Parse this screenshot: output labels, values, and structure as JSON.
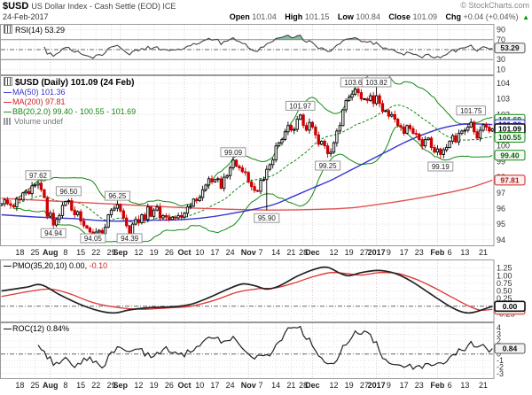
{
  "header": {
    "symbol": "$USD",
    "title": "US Dollar Index - Cash Settle (EOD) ICE",
    "copyright": "© StockCharts.com",
    "date": "24-Feb-2017",
    "quote": {
      "open_label": "Open",
      "open": "101.04",
      "high_label": "High",
      "high": "101.15",
      "low_label": "Low",
      "low": "100.84",
      "close_label": "Close",
      "close": "101.09",
      "chg_label": "Chg",
      "chg": "+0.04 (+0.04%)",
      "direction": "up",
      "arrow": "▲"
    }
  },
  "colors": {
    "up_candle": "#000000",
    "down_candle": "#cc0000",
    "ma50": "#3535d0",
    "ma200": "#e05252",
    "bb": "#128a12",
    "rsi_line": "#444444",
    "rsi_fill": "#2e8b57",
    "pmo_line": "#222222",
    "pmo_signal": "#e03333",
    "roc_line": "#222222",
    "grid": "#e9dcdc",
    "grid_bold": "#dcc8c8",
    "frame": "#999999"
  },
  "panels": {
    "rsi": {
      "legend": "RSI(14)",
      "value": "53.29",
      "yticks": [
        90,
        70,
        30,
        10
      ],
      "overbought": 70,
      "oversold": 30,
      "midline": 50,
      "box": {
        "text": "53.29",
        "v": 53.29,
        "style": "gray"
      }
    },
    "main": {
      "legend_title": "$USD (Daily) 101.09 (24 Feb)",
      "legend_ma50": "MA(50) 101.36",
      "legend_ma200": "MA(200) 97.81",
      "legend_bb": "BB(20,2.0) 99.40 - 100.55 - 101.69",
      "legend_volume": "Volume undef",
      "yticks": [
        104,
        103,
        102,
        101,
        100,
        99,
        98,
        97,
        96,
        95,
        94
      ],
      "axis_boxes": [
        {
          "text": "101.69",
          "v": 101.69,
          "style": "green"
        },
        {
          "text": "101.36",
          "v": 101.36,
          "style": "blue"
        },
        {
          "text": "101.09",
          "v": 101.09,
          "style": "dark"
        },
        {
          "text": "100.55",
          "v": 100.55,
          "style": "green"
        },
        {
          "text": "99.40",
          "v": 99.4,
          "style": "green"
        },
        {
          "text": "97.81",
          "v": 97.81,
          "style": "red"
        }
      ],
      "annotations": [
        {
          "text": "97.62",
          "i": 12,
          "v": 97.62,
          "side": "above"
        },
        {
          "text": "96.50",
          "i": 22,
          "v": 96.6,
          "side": "above"
        },
        {
          "text": "94.94",
          "i": 17,
          "v": 94.94,
          "side": "below"
        },
        {
          "text": "94.05",
          "i": 30,
          "v": 94.05,
          "side": "below"
        },
        {
          "text": "96.25",
          "i": 38,
          "v": 96.3,
          "side": "above"
        },
        {
          "text": "94.39",
          "i": 42,
          "v": 94.39,
          "side": "below"
        },
        {
          "text": "99.09",
          "i": 76,
          "v": 99.09,
          "side": "above"
        },
        {
          "text": "95.90",
          "i": 87,
          "v": 95.9,
          "side": "below"
        },
        {
          "text": "101.97",
          "i": 98,
          "v": 102.05,
          "side": "above"
        },
        {
          "text": "99.25",
          "i": 107,
          "v": 99.25,
          "side": "below"
        },
        {
          "text": "103.62",
          "i": 116,
          "v": 103.74,
          "side": "above"
        },
        {
          "text": "103.82",
          "i": 123,
          "v": 103.82,
          "side": "above"
        },
        {
          "text": "99.19",
          "i": 144,
          "v": 99.19,
          "side": "below"
        },
        {
          "text": "101.75",
          "i": 154,
          "v": 101.75,
          "side": "above"
        }
      ]
    },
    "pmo": {
      "legend": "PMO(35,20,10)",
      "value1": "0.00,",
      "value2": "-0.10",
      "yticks": [
        1.25,
        1.0,
        0.75,
        0.5,
        0.25,
        -0.25
      ],
      "boxes": [
        {
          "text": "-0.10",
          "v": -0.1,
          "style": "red"
        },
        {
          "text": "0.00",
          "v": 0.0,
          "style": "dark"
        }
      ]
    },
    "roc": {
      "legend": "ROC(12)",
      "value": "0.84%",
      "yticks": [
        4,
        3,
        2,
        1,
        0,
        -1,
        -2,
        -3
      ],
      "box": {
        "text": "0.84",
        "v": 0.84,
        "style": "gray"
      }
    }
  },
  "chart_data": {
    "type": "candlestick",
    "title": "$USD US Dollar Index - Cash Settle (EOD) ICE",
    "date_range": "Jul 2016 - 24 Feb 2017",
    "ylim_main": [
      93.65,
      104.45
    ],
    "x_ticks": [
      {
        "label": "18",
        "i": 6
      },
      {
        "label": "25",
        "i": 11
      },
      {
        "label": "Aug",
        "i": 16,
        "bold": true
      },
      {
        "label": "8",
        "i": 21
      },
      {
        "label": "15",
        "i": 26
      },
      {
        "label": "22",
        "i": 31
      },
      {
        "label": "29",
        "i": 36
      },
      {
        "label": "Sep",
        "i": 39,
        "bold": true
      },
      {
        "label": "12",
        "i": 45
      },
      {
        "label": "19",
        "i": 50
      },
      {
        "label": "26",
        "i": 55
      },
      {
        "label": "Oct",
        "i": 60,
        "bold": true
      },
      {
        "label": "10",
        "i": 65
      },
      {
        "label": "17",
        "i": 70
      },
      {
        "label": "24",
        "i": 75
      },
      {
        "label": "Nov",
        "i": 81,
        "bold": true
      },
      {
        "label": "7",
        "i": 85
      },
      {
        "label": "14",
        "i": 90
      },
      {
        "label": "21",
        "i": 95
      },
      {
        "label": "28",
        "i": 99
      },
      {
        "label": "Dec",
        "i": 102,
        "bold": true
      },
      {
        "label": "12",
        "i": 109
      },
      {
        "label": "19",
        "i": 114
      },
      {
        "label": "27",
        "i": 119
      },
      {
        "label": "2017",
        "i": 123,
        "bold": true
      },
      {
        "label": "9",
        "i": 127
      },
      {
        "label": "17",
        "i": 132
      },
      {
        "label": "23",
        "i": 137
      },
      {
        "label": "Feb",
        "i": 143,
        "bold": true
      },
      {
        "label": "6",
        "i": 147
      },
      {
        "label": "13",
        "i": 152
      },
      {
        "label": "21",
        "i": 158
      }
    ],
    "closes": [
      96.3,
      96.55,
      96.3,
      96.2,
      96.1,
      96.6,
      96.55,
      97.0,
      97.1,
      96.95,
      97.45,
      97.5,
      97.62,
      97.2,
      96.7,
      95.5,
      95.7,
      94.94,
      95.3,
      95.55,
      96.2,
      96.45,
      96.5,
      95.9,
      95.6,
      95.8,
      95.2,
      94.9,
      94.75,
      94.5,
      94.05,
      94.5,
      94.6,
      94.4,
      94.8,
      95.6,
      95.9,
      96.02,
      96.25,
      95.85,
      95.4,
      94.9,
      94.39,
      95.0,
      95.3,
      95.1,
      95.6,
      95.3,
      96.1,
      95.5,
      95.9,
      96.1,
      95.4,
      95.55,
      95.45,
      95.3,
      95.45,
      95.4,
      95.55,
      95.45,
      95.7,
      96.1,
      96.15,
      96.6,
      96.5,
      96.7,
      97.2,
      97.5,
      97.9,
      97.7,
      97.85,
      97.9,
      97.3,
      98.0,
      98.1,
      98.6,
      99.09,
      98.7,
      98.6,
      98.35,
      98.3,
      97.7,
      97.4,
      97.15,
      97.1,
      97.8,
      97.85,
      98.5,
      98.8,
      99.1,
      100.0,
      100.2,
      100.4,
      100.9,
      101.3,
      101.0,
      101.05,
      101.7,
      101.97,
      101.3,
      101.0,
      101.5,
      101.2,
      100.7,
      100.1,
      100.3,
      100.0,
      99.5,
      99.6,
      100.2,
      100.95,
      101.3,
      102.3,
      102.9,
      103.1,
      103.3,
      103.62,
      103.4,
      103.0,
      103.0,
      102.9,
      103.2,
      102.7,
      103.2,
      102.7,
      102.2,
      102.25,
      101.9,
      102.0,
      101.7,
      101.3,
      101.2,
      100.8,
      101.3,
      101.1,
      100.8,
      100.75,
      100.4,
      100.0,
      100.4,
      100.5,
      99.9,
      99.6,
      99.8,
      99.45,
      99.75,
      99.9,
      100.3,
      100.65,
      100.25,
      100.8,
      100.95,
      101.0,
      101.2,
      101.5,
      100.9,
      100.5,
      101.0,
      101.35,
      101.2,
      100.95,
      101.09
    ],
    "extremes": {
      "12": {
        "high": 97.62
      },
      "17": {
        "low": 94.94
      },
      "22": {
        "high": 96.55
      },
      "30": {
        "low": 94.05
      },
      "38": {
        "high": 96.28
      },
      "42": {
        "low": 94.39
      },
      "76": {
        "high": 99.09
      },
      "87": {
        "low": 95.9
      },
      "98": {
        "high": 102.05
      },
      "107": {
        "low": 99.25
      },
      "116": {
        "high": 103.74
      },
      "123": {
        "high": 103.82
      },
      "144": {
        "low": 99.19
      },
      "154": {
        "high": 101.75
      }
    },
    "ma50_points": [
      [
        0,
        95.6
      ],
      [
        12,
        95.45
      ],
      [
        24,
        95.35
      ],
      [
        36,
        95.2
      ],
      [
        48,
        95.25
      ],
      [
        60,
        95.3
      ],
      [
        68,
        95.45
      ],
      [
        76,
        95.7
      ],
      [
        84,
        96.0
      ],
      [
        90,
        96.3
      ],
      [
        96,
        96.8
      ],
      [
        102,
        97.3
      ],
      [
        108,
        97.8
      ],
      [
        114,
        98.4
      ],
      [
        120,
        99.0
      ],
      [
        126,
        99.6
      ],
      [
        132,
        100.2
      ],
      [
        138,
        100.7
      ],
      [
        144,
        101.1
      ],
      [
        150,
        101.35
      ],
      [
        156,
        101.4
      ],
      [
        161,
        101.36
      ]
    ],
    "ma200_points": [
      [
        0,
        96.65
      ],
      [
        20,
        96.45
      ],
      [
        40,
        96.25
      ],
      [
        60,
        96.05
      ],
      [
        75,
        95.95
      ],
      [
        90,
        95.9
      ],
      [
        105,
        95.95
      ],
      [
        115,
        96.05
      ],
      [
        125,
        96.3
      ],
      [
        135,
        96.6
      ],
      [
        145,
        96.95
      ],
      [
        153,
        97.3
      ],
      [
        158,
        97.6
      ],
      [
        161,
        97.81
      ]
    ],
    "pmo_points": [
      [
        0,
        0.5
      ],
      [
        8,
        0.62
      ],
      [
        13,
        0.7
      ],
      [
        19,
        0.38
      ],
      [
        26,
        0.05
      ],
      [
        32,
        -0.15
      ],
      [
        37,
        -0.22
      ],
      [
        42,
        -0.12
      ],
      [
        48,
        -0.05
      ],
      [
        56,
        -0.02
      ],
      [
        62,
        0.06
      ],
      [
        68,
        0.28
      ],
      [
        74,
        0.55
      ],
      [
        79,
        0.73
      ],
      [
        83,
        0.67
      ],
      [
        87,
        0.56
      ],
      [
        91,
        0.66
      ],
      [
        97,
        0.98
      ],
      [
        103,
        1.22
      ],
      [
        107,
        1.27
      ],
      [
        111,
        1.08
      ],
      [
        114,
        1.0
      ],
      [
        118,
        1.1
      ],
      [
        123,
        1.17
      ],
      [
        127,
        1.13
      ],
      [
        131,
        1.0
      ],
      [
        135,
        0.78
      ],
      [
        139,
        0.52
      ],
      [
        143,
        0.25
      ],
      [
        147,
        0.0
      ],
      [
        150,
        -0.15
      ],
      [
        153,
        -0.22
      ],
      [
        156,
        -0.17
      ],
      [
        159,
        -0.07
      ],
      [
        161,
        0.0
      ]
    ],
    "pmo_signal_points": [
      [
        0,
        0.32
      ],
      [
        10,
        0.5
      ],
      [
        16,
        0.56
      ],
      [
        22,
        0.42
      ],
      [
        30,
        0.12
      ],
      [
        38,
        -0.04
      ],
      [
        46,
        -0.1
      ],
      [
        54,
        -0.06
      ],
      [
        62,
        0.0
      ],
      [
        70,
        0.2
      ],
      [
        77,
        0.45
      ],
      [
        84,
        0.57
      ],
      [
        90,
        0.6
      ],
      [
        96,
        0.76
      ],
      [
        102,
        0.96
      ],
      [
        108,
        1.1
      ],
      [
        113,
        1.07
      ],
      [
        118,
        1.02
      ],
      [
        124,
        1.1
      ],
      [
        130,
        1.07
      ],
      [
        136,
        0.88
      ],
      [
        142,
        0.6
      ],
      [
        148,
        0.28
      ],
      [
        153,
        0.02
      ],
      [
        157,
        -0.13
      ],
      [
        161,
        -0.1
      ]
    ],
    "indicators": {
      "rsi_period": 14,
      "rsi_last": 53.29,
      "bb_params": [
        20,
        2.0
      ],
      "bb_last": [
        99.4,
        100.55,
        101.69
      ],
      "ma50_last": 101.36,
      "ma200_last": 97.81,
      "pmo_params": [
        35,
        20,
        10
      ],
      "pmo_last": [
        0.0,
        -0.1
      ],
      "roc_period": 12,
      "roc_last": 0.84
    }
  }
}
